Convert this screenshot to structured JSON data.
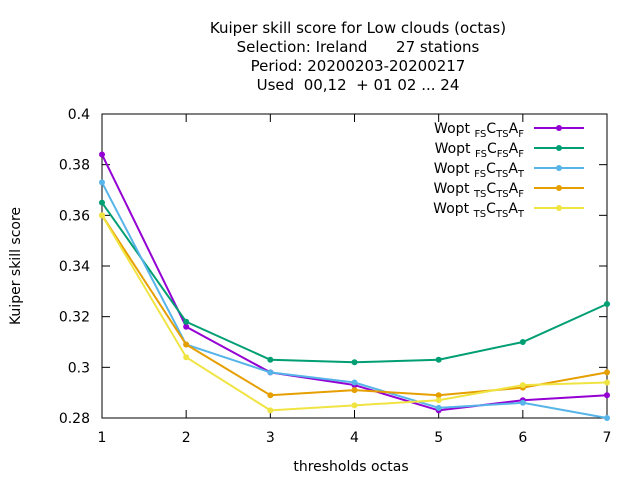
{
  "chart_data": {
    "type": "line",
    "title_lines": [
      "Kuiper skill score  for Low clouds (octas)",
      "Selection: Ireland      27 stations",
      "Period: 20200203-20200217",
      "Used  00,12  + 01 02 ... 24"
    ],
    "xlabel": "thresholds octas",
    "ylabel": "Kuiper skill score",
    "xlim": [
      1,
      7
    ],
    "ylim": [
      0.28,
      0.4
    ],
    "xticks": [
      1,
      2,
      3,
      4,
      5,
      6,
      7
    ],
    "yticks": [
      0.28,
      0.3,
      0.32,
      0.34,
      0.36,
      0.38,
      0.4
    ],
    "ytick_labels": [
      "0.28",
      "0.3",
      "0.32",
      "0.34",
      "0.36",
      "0.38",
      "0.4"
    ],
    "grid": false,
    "legend_position": "top-right",
    "x": [
      1,
      2,
      3,
      4,
      5,
      6,
      7
    ],
    "series": [
      {
        "name": "Wopt FS CTS AF",
        "label_parts": [
          [
            "Wopt ",
            ""
          ],
          [
            "FS",
            "sub"
          ],
          [
            "C",
            ""
          ],
          [
            "TS",
            "sub"
          ],
          [
            "A",
            ""
          ],
          [
            "F",
            "sub"
          ]
        ],
        "color": "#9400d3",
        "values": [
          0.384,
          0.316,
          0.298,
          0.293,
          0.283,
          0.287,
          0.289
        ]
      },
      {
        "name": "Wopt FS CFS AF",
        "label_parts": [
          [
            "Wopt ",
            ""
          ],
          [
            "FS",
            "sub"
          ],
          [
            "C",
            ""
          ],
          [
            "FS",
            "sub"
          ],
          [
            "A",
            ""
          ],
          [
            "F",
            "sub"
          ]
        ],
        "color": "#009e73",
        "values": [
          0.365,
          0.318,
          0.303,
          0.302,
          0.303,
          0.31,
          0.325
        ]
      },
      {
        "name": "Wopt FS CTS AT",
        "label_parts": [
          [
            "Wopt ",
            ""
          ],
          [
            "FS",
            "sub"
          ],
          [
            "C",
            ""
          ],
          [
            "TS",
            "sub"
          ],
          [
            "A",
            ""
          ],
          [
            "T",
            "sub"
          ]
        ],
        "color": "#56b4e9",
        "values": [
          0.373,
          0.309,
          0.298,
          0.294,
          0.284,
          0.286,
          0.28
        ]
      },
      {
        "name": "Wopt TS CTS AF",
        "label_parts": [
          [
            "Wopt ",
            ""
          ],
          [
            "TS",
            "sub"
          ],
          [
            "C",
            ""
          ],
          [
            "TS",
            "sub"
          ],
          [
            "A",
            ""
          ],
          [
            "F",
            "sub"
          ]
        ],
        "color": "#e69f00",
        "values": [
          0.36,
          0.309,
          0.289,
          0.291,
          0.289,
          0.292,
          0.298
        ]
      },
      {
        "name": "Wopt TS CTS AT",
        "label_parts": [
          [
            "Wopt ",
            ""
          ],
          [
            "TS",
            "sub"
          ],
          [
            "C",
            ""
          ],
          [
            "TS",
            "sub"
          ],
          [
            "A",
            ""
          ],
          [
            "T",
            "sub"
          ]
        ],
        "color": "#f0e442",
        "values": [
          0.36,
          0.304,
          0.283,
          0.285,
          0.287,
          0.293,
          0.294
        ]
      }
    ]
  }
}
